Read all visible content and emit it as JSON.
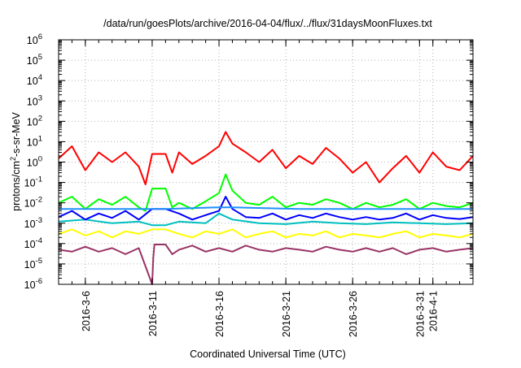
{
  "chart_data": {
    "type": "line",
    "title": "/data/run/goesPlots/archive/2016-04-04/flux/../flux/31daysMoonFluxes.txt",
    "xlabel": "Coordinated Universal Time (UTC)",
    "ylabel": "protons/cm2-s-sr-MeV",
    "ylabel_parts": {
      "before": "protons/cm",
      "sup": "2",
      "after": "-s-sr-MeV"
    },
    "y_scale": "log",
    "ylim": [
      1e-06,
      1000000.0
    ],
    "xlim": [
      "2016-03-04",
      "2016-04-04"
    ],
    "grid": true,
    "y_ticks": [
      {
        "base": "10",
        "exp": "-6",
        "value": 1e-06
      },
      {
        "base": "10",
        "exp": "-5",
        "value": 1e-05
      },
      {
        "base": "10",
        "exp": "-4",
        "value": 0.0001
      },
      {
        "base": "10",
        "exp": "-3",
        "value": 0.001
      },
      {
        "base": "10",
        "exp": "-2",
        "value": 0.01
      },
      {
        "base": "10",
        "exp": "-1",
        "value": 0.1
      },
      {
        "base": "10",
        "exp": "0",
        "value": 1
      },
      {
        "base": "10",
        "exp": "1",
        "value": 10
      },
      {
        "base": "10",
        "exp": "2",
        "value": 100
      },
      {
        "base": "10",
        "exp": "3",
        "value": 1000
      },
      {
        "base": "10",
        "exp": "4",
        "value": 10000
      },
      {
        "base": "10",
        "exp": "5",
        "value": 100000
      },
      {
        "base": "10",
        "exp": "6",
        "value": 1000000
      }
    ],
    "x_ticks": [
      "2016-3-6",
      "2016-3-11",
      "2016-3-16",
      "2016-3-21",
      "2016-3-26",
      "2016-3-31",
      "2016-4-1"
    ],
    "series": [
      {
        "color": "#ff0000",
        "x": [
          "2016-03-04",
          "2016-03-05",
          "2016-03-06",
          "2016-03-07",
          "2016-03-08",
          "2016-03-09",
          "2016-03-10",
          "2016-03-10T12",
          "2016-03-11",
          "2016-03-12",
          "2016-03-12T12",
          "2016-03-13",
          "2016-03-14",
          "2016-03-15",
          "2016-03-16",
          "2016-03-16T12",
          "2016-03-17",
          "2016-03-18",
          "2016-03-19",
          "2016-03-20",
          "2016-03-21",
          "2016-03-22",
          "2016-03-23",
          "2016-03-24",
          "2016-03-25",
          "2016-03-26",
          "2016-03-27",
          "2016-03-28",
          "2016-03-29",
          "2016-03-30",
          "2016-03-31",
          "2016-04-01",
          "2016-04-02",
          "2016-04-03",
          "2016-04-04"
        ],
        "values": [
          1.5,
          6,
          0.4,
          3,
          1,
          3,
          0.6,
          0.08,
          2.5,
          2.5,
          0.3,
          3,
          0.8,
          2,
          6,
          30,
          8,
          3,
          1,
          4,
          0.5,
          2,
          0.8,
          5,
          1.5,
          0.3,
          1,
          0.1,
          0.5,
          2,
          0.3,
          3,
          0.6,
          0.4,
          2
        ]
      },
      {
        "color": "#00ff00",
        "x": [
          "2016-03-04",
          "2016-03-05",
          "2016-03-06",
          "2016-03-07",
          "2016-03-08",
          "2016-03-09",
          "2016-03-10",
          "2016-03-10T12",
          "2016-03-11",
          "2016-03-12",
          "2016-03-12T12",
          "2016-03-13",
          "2016-03-14",
          "2016-03-15",
          "2016-03-16",
          "2016-03-16T12",
          "2016-03-17",
          "2016-03-18",
          "2016-03-19",
          "2016-03-20",
          "2016-03-21",
          "2016-03-22",
          "2016-03-23",
          "2016-03-24",
          "2016-03-25",
          "2016-03-26",
          "2016-03-27",
          "2016-03-28",
          "2016-03-29",
          "2016-03-30",
          "2016-03-31",
          "2016-04-01",
          "2016-04-02",
          "2016-04-03",
          "2016-04-04"
        ],
        "values": [
          0.01,
          0.02,
          0.005,
          0.015,
          0.008,
          0.02,
          0.006,
          0.004,
          0.05,
          0.05,
          0.006,
          0.01,
          0.005,
          0.012,
          0.03,
          0.25,
          0.04,
          0.01,
          0.008,
          0.02,
          0.006,
          0.01,
          0.008,
          0.015,
          0.01,
          0.005,
          0.01,
          0.006,
          0.008,
          0.015,
          0.005,
          0.01,
          0.007,
          0.006,
          0.01
        ]
      },
      {
        "color": "#00bfbf",
        "x": [
          "2016-03-04",
          "2016-03-06",
          "2016-03-08",
          "2016-03-10",
          "2016-03-11",
          "2016-03-12",
          "2016-03-13",
          "2016-03-15",
          "2016-03-16",
          "2016-03-17",
          "2016-03-19",
          "2016-03-21",
          "2016-03-23",
          "2016-03-25",
          "2016-03-27",
          "2016-03-29",
          "2016-03-31",
          "2016-04-02",
          "2016-04-04"
        ],
        "values": [
          0.0012,
          0.0015,
          0.001,
          0.0012,
          0.0008,
          0.0008,
          0.0012,
          0.001,
          0.003,
          0.0015,
          0.001,
          0.0009,
          0.0012,
          0.001,
          0.0009,
          0.0011,
          0.001,
          0.0009,
          0.001
        ]
      },
      {
        "color": "#0000ff",
        "x": [
          "2016-03-04",
          "2016-03-05",
          "2016-03-06",
          "2016-03-07",
          "2016-03-08",
          "2016-03-09",
          "2016-03-10",
          "2016-03-11",
          "2016-03-12",
          "2016-03-13",
          "2016-03-14",
          "2016-03-15",
          "2016-03-16",
          "2016-03-16T12",
          "2016-03-17",
          "2016-03-18",
          "2016-03-19",
          "2016-03-20",
          "2016-03-21",
          "2016-03-22",
          "2016-03-23",
          "2016-03-24",
          "2016-03-25",
          "2016-03-26",
          "2016-03-27",
          "2016-03-28",
          "2016-03-29",
          "2016-03-30",
          "2016-03-31",
          "2016-04-01",
          "2016-04-02",
          "2016-04-03",
          "2016-04-04"
        ],
        "values": [
          0.002,
          0.004,
          0.0015,
          0.003,
          0.0018,
          0.004,
          0.0015,
          0.005,
          0.005,
          0.003,
          0.0015,
          0.0025,
          0.004,
          0.02,
          0.005,
          0.002,
          0.0018,
          0.003,
          0.0015,
          0.0025,
          0.0018,
          0.003,
          0.002,
          0.0015,
          0.002,
          0.0015,
          0.0018,
          0.003,
          0.0015,
          0.0025,
          0.0018,
          0.0016,
          0.002
        ]
      },
      {
        "color": "#1e90ff",
        "x": [
          "2016-03-04",
          "2016-03-11",
          "2016-03-12",
          "2016-03-16",
          "2016-03-17",
          "2016-03-22",
          "2016-03-29",
          "2016-04-04"
        ],
        "values": [
          0.005,
          0.005,
          0.005,
          0.006,
          0.006,
          0.005,
          0.005,
          0.005
        ]
      },
      {
        "color": "#ffff00",
        "x": [
          "2016-03-04",
          "2016-03-05",
          "2016-03-06",
          "2016-03-07",
          "2016-03-08",
          "2016-03-09",
          "2016-03-10",
          "2016-03-11",
          "2016-03-12",
          "2016-03-13",
          "2016-03-14",
          "2016-03-15",
          "2016-03-16",
          "2016-03-17",
          "2016-03-18",
          "2016-03-19",
          "2016-03-20",
          "2016-03-21",
          "2016-03-22",
          "2016-03-23",
          "2016-03-24",
          "2016-03-25",
          "2016-03-26",
          "2016-03-27",
          "2016-03-28",
          "2016-03-29",
          "2016-03-30",
          "2016-03-31",
          "2016-04-01",
          "2016-04-02",
          "2016-04-03",
          "2016-04-04"
        ],
        "values": [
          0.0003,
          0.0005,
          0.00025,
          0.0004,
          0.0002,
          0.0004,
          0.0003,
          0.0005,
          0.0005,
          0.0003,
          0.0002,
          0.0004,
          0.0003,
          0.0005,
          0.0002,
          0.0003,
          0.0004,
          0.0002,
          0.0003,
          0.00025,
          0.0004,
          0.0002,
          0.0003,
          0.00025,
          0.0002,
          0.0003,
          0.0004,
          0.0002,
          0.0003,
          0.00025,
          0.0002,
          0.0003
        ]
      },
      {
        "color": "#993366",
        "x": [
          "2016-03-04",
          "2016-03-05",
          "2016-03-06",
          "2016-03-07",
          "2016-03-08",
          "2016-03-09",
          "2016-03-10",
          "2016-03-11",
          "2016-03-11T02",
          "2016-03-11T04",
          "2016-03-12",
          "2016-03-12T12",
          "2016-03-13",
          "2016-03-14",
          "2016-03-15",
          "2016-03-16",
          "2016-03-17",
          "2016-03-18",
          "2016-03-19",
          "2016-03-20",
          "2016-03-21",
          "2016-03-22",
          "2016-03-23",
          "2016-03-24",
          "2016-03-25",
          "2016-03-26",
          "2016-03-27",
          "2016-03-28",
          "2016-03-29",
          "2016-03-30",
          "2016-03-31",
          "2016-04-01",
          "2016-04-02",
          "2016-04-03",
          "2016-04-04"
        ],
        "values": [
          5e-05,
          4e-05,
          7e-05,
          4e-05,
          6e-05,
          3e-05,
          6e-05,
          1e-06,
          2e-05,
          9e-05,
          9e-05,
          3e-05,
          5e-05,
          8e-05,
          4e-05,
          6e-05,
          4e-05,
          8e-05,
          5e-05,
          4e-05,
          6e-05,
          5e-05,
          4e-05,
          7e-05,
          5e-05,
          4e-05,
          6e-05,
          4e-05,
          6e-05,
          3e-05,
          5e-05,
          6e-05,
          4e-05,
          5e-05,
          6e-05
        ]
      }
    ]
  }
}
